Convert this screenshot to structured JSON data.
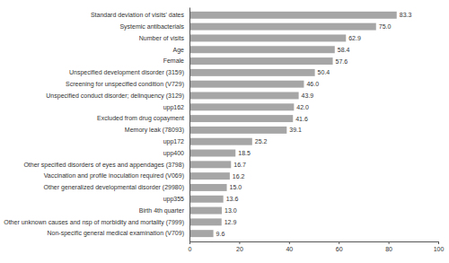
{
  "chart_data": {
    "type": "bar",
    "orientation": "horizontal",
    "color": "#a6a6a6",
    "data_labels": true,
    "grid": false,
    "categories": [
      "Standard deviation of visits' dates",
      "Systemic antibacterials",
      "Number of visits",
      "Age",
      "Female",
      "Unspecified development disorder (3159)",
      "Screening for unspecified condition (V729)",
      "Unspecified conduct disorder; delinquency (3129)",
      "upp162",
      "Excluded from drug copayment",
      "Memory leak (78093)",
      "upp172",
      "upp400",
      "Other specified disorders of eyes and appendages (3798)",
      "Vaccination and profile inoculation required (V069)",
      "Other generalized developmental disorder (29980)",
      "upp355",
      "Birth 4th quarter",
      "Other unknown causes and nsp of morbidity and mortality (7999)",
      "Non-specific general medical examination (V709)"
    ],
    "values": [
      83.3,
      75,
      62.9,
      58.4,
      57.6,
      50.4,
      46,
      43.9,
      42,
      41.6,
      39.1,
      25.2,
      18.5,
      16.7,
      16.2,
      15,
      13.6,
      13,
      12.9,
      9.6
    ],
    "value_labels": [
      "83.3",
      "75.0",
      "62.9",
      "58.4",
      "57.6",
      "50.4",
      "46.0",
      "43.9",
      "42.0",
      "41.6",
      "39.1",
      "25.2",
      "18.5",
      "16.7",
      "16.2",
      "15.0",
      "13.6",
      "13.0",
      "12.9",
      "9.6"
    ],
    "xlim": [
      0,
      100
    ],
    "xticks": [
      0,
      20,
      40,
      60,
      80,
      100
    ]
  }
}
